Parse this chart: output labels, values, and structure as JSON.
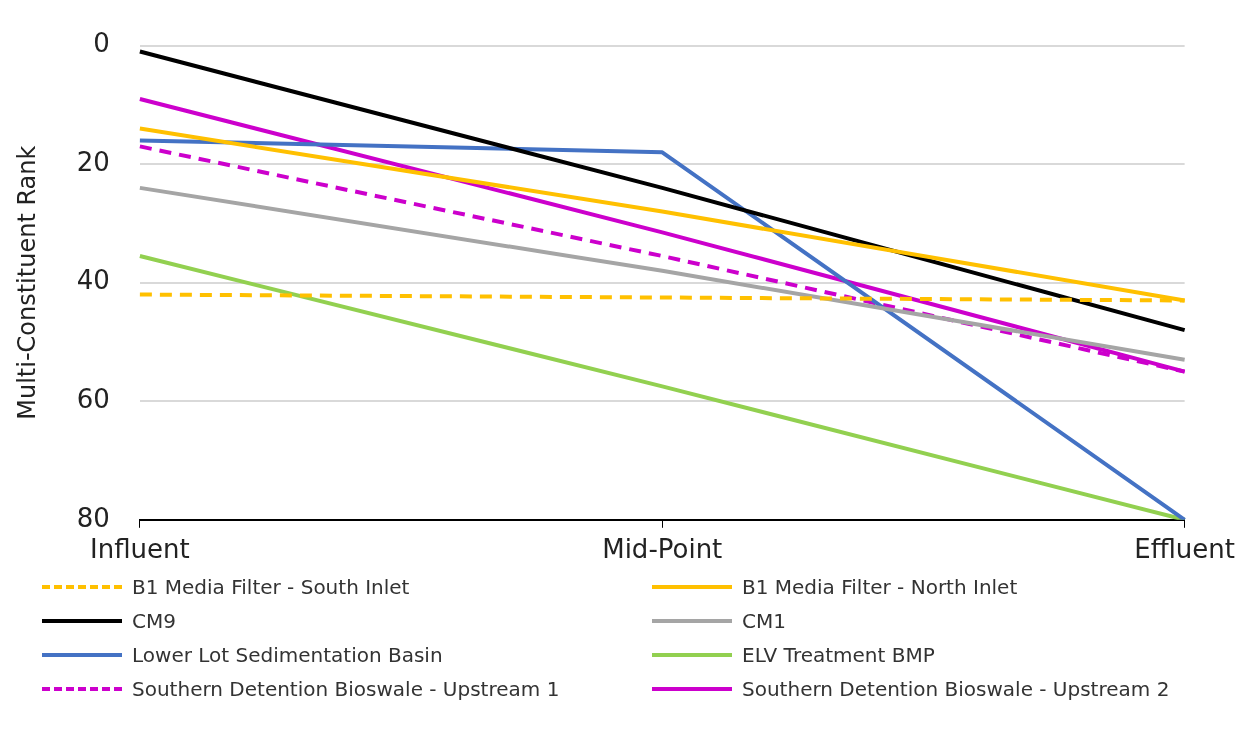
{
  "chart_data": {
    "type": "line",
    "ylabel": "Multi-Constituent Rank",
    "categories": [
      "Influent",
      "Mid-Point",
      "Effluent"
    ],
    "ylim": [
      80,
      0
    ],
    "yticks": [
      0,
      20,
      40,
      60,
      80
    ],
    "grid": "y",
    "legend": "bottom",
    "marker": "none",
    "series": [
      {
        "name": "B1 Media Filter - South Inlet",
        "color": "#ffc000",
        "line_style": "dashed",
        "values": [
          42,
          42.5,
          43
        ]
      },
      {
        "name": "B1 Media Filter - North Inlet",
        "color": "#ffc000",
        "line_style": "solid",
        "values": [
          14,
          28,
          43
        ]
      },
      {
        "name": "CM9",
        "color": "#000000",
        "line_style": "solid",
        "values": [
          1,
          24,
          48
        ]
      },
      {
        "name": "CM1",
        "color": "#a5a5a5",
        "line_style": "solid",
        "values": [
          24,
          38,
          53
        ]
      },
      {
        "name": "Lower Lot Sedimentation Basin",
        "color": "#4472c4",
        "line_style": "solid",
        "values": [
          16,
          18,
          80
        ]
      },
      {
        "name": "ELV Treatment BMP",
        "color": "#92d050",
        "line_style": "solid",
        "values": [
          35.5,
          57.5,
          80
        ]
      },
      {
        "name": "Southern Detention Bioswale - Upstream 1",
        "color": "#cc00cc",
        "line_style": "dashed",
        "values": [
          17,
          35.5,
          55
        ]
      },
      {
        "name": "Southern Detention Bioswale - Upstream 2",
        "color": "#cc00cc",
        "line_style": "solid",
        "values": [
          9,
          31.5,
          55
        ]
      }
    ]
  }
}
